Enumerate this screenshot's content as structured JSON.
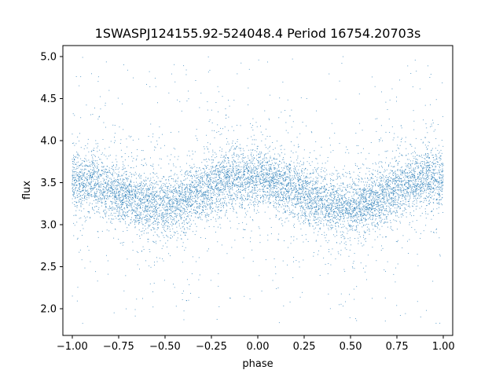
{
  "chart_data": {
    "type": "scatter",
    "title": "1SWASPJ124155.92-524048.4 Period 16754.20703s",
    "xlabel": "phase",
    "ylabel": "flux",
    "xlim": [
      -1.05,
      1.05
    ],
    "ylim": [
      1.68,
      5.13
    ],
    "x_ticks": [
      -1.0,
      -0.75,
      -0.5,
      -0.25,
      0.0,
      0.25,
      0.5,
      0.75,
      1.0
    ],
    "x_tick_labels": [
      "−1.00",
      "−0.75",
      "−0.50",
      "−0.25",
      "0.00",
      "0.25",
      "0.50",
      "0.75",
      "1.00"
    ],
    "y_ticks": [
      2.0,
      2.5,
      3.0,
      3.5,
      4.0,
      4.5,
      5.0
    ],
    "y_tick_labels": [
      "2.0",
      "2.5",
      "3.0",
      "3.5",
      "4.0",
      "4.5",
      "5.0"
    ],
    "grid": false,
    "legend": "none",
    "marker_color": "#1f77b4",
    "description_of_cloud": {
      "x_range": [
        -1.0,
        1.0
      ],
      "n_points_approx": 9000
    },
    "folded_light_curve_trend": {
      "phase": [
        -1.0,
        -0.9,
        -0.8,
        -0.7,
        -0.6,
        -0.5,
        -0.4,
        -0.3,
        -0.2,
        -0.1,
        0.0,
        0.1,
        0.2,
        0.3,
        0.4,
        0.5,
        0.6,
        0.7,
        0.8,
        0.9,
        1.0
      ],
      "median_flux": [
        3.55,
        3.5,
        3.42,
        3.33,
        3.25,
        3.22,
        3.28,
        3.38,
        3.5,
        3.57,
        3.57,
        3.5,
        3.42,
        3.32,
        3.24,
        3.2,
        3.27,
        3.37,
        3.48,
        3.55,
        3.57
      ]
    }
  }
}
